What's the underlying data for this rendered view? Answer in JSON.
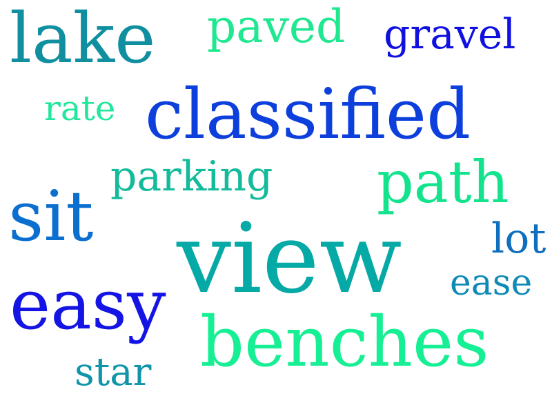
{
  "words": [
    {
      "text": "lake",
      "color": "#0f8f9f"
    },
    {
      "text": "paved",
      "color": "#1fe890"
    },
    {
      "text": "gravel",
      "color": "#1010e0"
    },
    {
      "text": "rate",
      "color": "#21e79d"
    },
    {
      "text": "classified",
      "color": "#0c3fdc"
    },
    {
      "text": "parking",
      "color": "#14bb9a"
    },
    {
      "text": "path",
      "color": "#14e38d"
    },
    {
      "text": "sit",
      "color": "#0a6fce"
    },
    {
      "text": "lot",
      "color": "#0f6fbe"
    },
    {
      "text": "view",
      "color": "#05a9a5"
    },
    {
      "text": "ease",
      "color": "#0f8ab6"
    },
    {
      "text": "easy",
      "color": "#1414e4"
    },
    {
      "text": "benches",
      "color": "#17ef95"
    },
    {
      "text": "star",
      "color": "#0f95a9"
    }
  ]
}
